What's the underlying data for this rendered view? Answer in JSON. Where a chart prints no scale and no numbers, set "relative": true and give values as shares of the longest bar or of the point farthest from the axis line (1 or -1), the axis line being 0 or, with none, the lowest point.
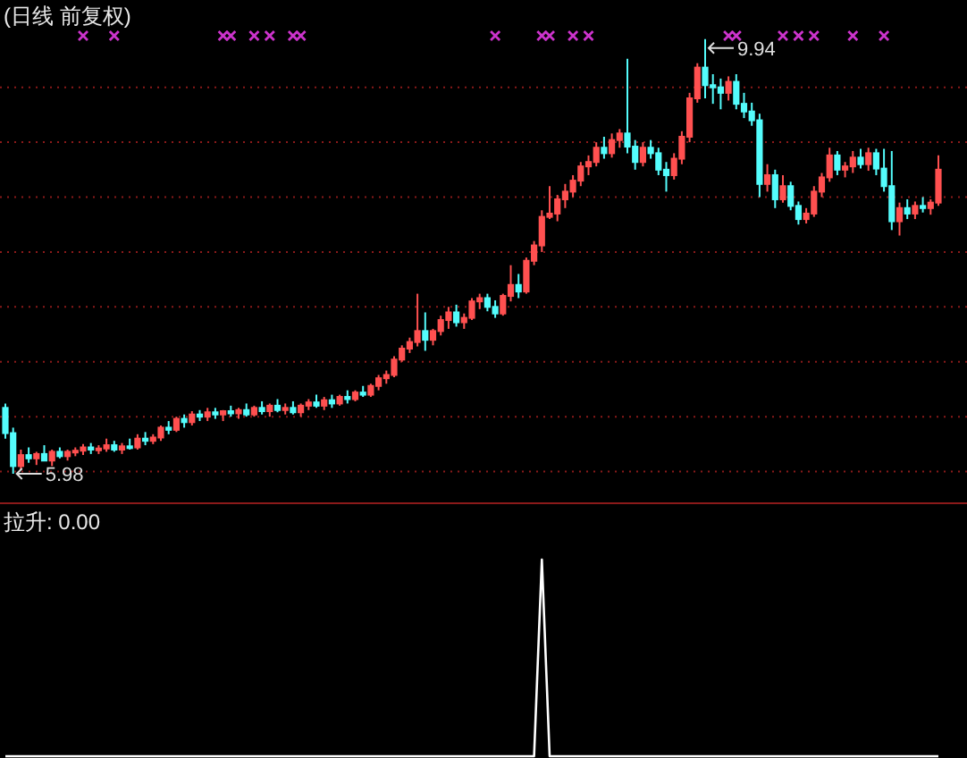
{
  "chart_data": [
    {
      "type": "candlestick",
      "title": "(日线 前复权)",
      "categories": [
        null,
        null,
        null,
        null,
        null,
        null,
        null,
        null,
        null,
        null,
        null,
        null,
        null,
        null,
        null,
        null,
        null,
        null,
        null,
        null,
        null,
        null,
        null,
        null,
        null,
        null,
        null,
        null,
        null,
        null,
        null,
        null,
        null,
        null,
        null,
        null,
        null,
        null,
        null,
        null,
        null,
        null,
        null,
        null,
        null,
        null,
        null,
        null,
        null,
        null,
        null,
        null,
        null,
        null,
        null,
        null,
        null,
        null,
        null,
        null,
        null,
        null,
        null,
        null,
        null,
        null,
        null,
        null,
        null,
        null,
        null,
        null,
        null,
        null,
        null,
        null,
        null,
        null,
        null,
        null,
        null,
        null,
        null,
        null,
        null,
        null,
        null,
        null,
        null,
        null,
        null,
        null,
        null,
        null,
        null,
        null,
        null,
        null,
        null,
        null,
        null,
        null,
        null,
        null,
        null,
        null,
        null,
        null,
        null,
        null,
        null,
        null,
        null,
        null,
        null,
        null,
        null,
        null,
        null,
        null,
        null
      ],
      "ohlc": [
        [
          6.58,
          6.62,
          6.3,
          6.35
        ],
        [
          6.35,
          6.4,
          5.98,
          6.05
        ],
        [
          6.05,
          6.2,
          6.02,
          6.15
        ],
        [
          6.15,
          6.22,
          6.08,
          6.12
        ],
        [
          6.12,
          6.18,
          6.06,
          6.16
        ],
        [
          6.16,
          6.24,
          6.1,
          6.1
        ],
        [
          6.1,
          6.2,
          6.05,
          6.18
        ],
        [
          6.18,
          6.22,
          6.12,
          6.14
        ],
        [
          6.14,
          6.2,
          6.1,
          6.18
        ],
        [
          6.18,
          6.22,
          6.14,
          6.19
        ],
        [
          6.19,
          6.25,
          6.15,
          6.22
        ],
        [
          6.22,
          6.26,
          6.16,
          6.2
        ],
        [
          6.2,
          6.24,
          6.16,
          6.21
        ],
        [
          6.21,
          6.3,
          6.18,
          6.24
        ],
        [
          6.24,
          6.28,
          6.18,
          6.2
        ],
        [
          6.2,
          6.26,
          6.16,
          6.23
        ],
        [
          6.23,
          6.3,
          6.2,
          6.22
        ],
        [
          6.22,
          6.34,
          6.2,
          6.3
        ],
        [
          6.3,
          6.36,
          6.24,
          6.28
        ],
        [
          6.28,
          6.34,
          6.25,
          6.31
        ],
        [
          6.31,
          6.42,
          6.28,
          6.4
        ],
        [
          6.4,
          6.46,
          6.34,
          6.38
        ],
        [
          6.38,
          6.5,
          6.36,
          6.48
        ],
        [
          6.48,
          6.52,
          6.4,
          6.45
        ],
        [
          6.45,
          6.55,
          6.42,
          6.52
        ],
        [
          6.52,
          6.56,
          6.46,
          6.5
        ],
        [
          6.5,
          6.58,
          6.46,
          6.54
        ],
        [
          6.54,
          6.58,
          6.48,
          6.52
        ],
        [
          6.52,
          6.56,
          6.46,
          6.55
        ],
        [
          6.55,
          6.6,
          6.5,
          6.53
        ],
        [
          6.53,
          6.58,
          6.48,
          6.56
        ],
        [
          6.56,
          6.62,
          6.5,
          6.52
        ],
        [
          6.52,
          6.6,
          6.5,
          6.58
        ],
        [
          6.58,
          6.64,
          6.52,
          6.55
        ],
        [
          6.55,
          6.62,
          6.5,
          6.6
        ],
        [
          6.6,
          6.66,
          6.54,
          6.56
        ],
        [
          6.56,
          6.62,
          6.52,
          6.58
        ],
        [
          6.58,
          6.64,
          6.52,
          6.54
        ],
        [
          6.54,
          6.62,
          6.5,
          6.6
        ],
        [
          6.6,
          6.66,
          6.56,
          6.63
        ],
        [
          6.63,
          6.7,
          6.58,
          6.6
        ],
        [
          6.6,
          6.68,
          6.56,
          6.65
        ],
        [
          6.65,
          6.7,
          6.58,
          6.62
        ],
        [
          6.62,
          6.7,
          6.6,
          6.68
        ],
        [
          6.68,
          6.74,
          6.62,
          6.66
        ],
        [
          6.66,
          6.74,
          6.64,
          6.72
        ],
        [
          6.72,
          6.78,
          6.68,
          6.7
        ],
        [
          6.7,
          6.8,
          6.68,
          6.78
        ],
        [
          6.78,
          6.88,
          6.74,
          6.85
        ],
        [
          6.85,
          6.92,
          6.8,
          6.88
        ],
        [
          6.88,
          7.05,
          6.86,
          7.02
        ],
        [
          7.02,
          7.15,
          7.0,
          7.12
        ],
        [
          7.12,
          7.22,
          7.08,
          7.18
        ],
        [
          7.18,
          7.62,
          7.14,
          7.28
        ],
        [
          7.28,
          7.45,
          7.1,
          7.2
        ],
        [
          7.2,
          7.3,
          7.15,
          7.28
        ],
        [
          7.28,
          7.42,
          7.24,
          7.38
        ],
        [
          7.38,
          7.5,
          7.3,
          7.45
        ],
        [
          7.45,
          7.52,
          7.32,
          7.36
        ],
        [
          7.36,
          7.44,
          7.3,
          7.4
        ],
        [
          7.4,
          7.58,
          7.38,
          7.55
        ],
        [
          7.55,
          7.62,
          7.48,
          7.58
        ],
        [
          7.58,
          7.62,
          7.46,
          7.5
        ],
        [
          7.5,
          7.56,
          7.4,
          7.44
        ],
        [
          7.44,
          7.62,
          7.42,
          7.6
        ],
        [
          7.6,
          7.88,
          7.55,
          7.7
        ],
        [
          7.7,
          7.8,
          7.58,
          7.64
        ],
        [
          7.64,
          7.95,
          7.62,
          7.92
        ],
        [
          7.92,
          8.1,
          7.88,
          8.06
        ],
        [
          8.06,
          8.38,
          8.0,
          8.32
        ],
        [
          8.32,
          8.6,
          8.3,
          8.35
        ],
        [
          8.35,
          8.52,
          8.28,
          8.48
        ],
        [
          8.48,
          8.62,
          8.4,
          8.55
        ],
        [
          8.55,
          8.7,
          8.5,
          8.65
        ],
        [
          8.65,
          8.82,
          8.6,
          8.78
        ],
        [
          8.78,
          8.88,
          8.7,
          8.82
        ],
        [
          8.82,
          9.0,
          8.78,
          8.95
        ],
        [
          8.95,
          9.05,
          8.85,
          8.9
        ],
        [
          8.9,
          9.08,
          8.86,
          9.02
        ],
        [
          9.02,
          9.12,
          8.95,
          9.08
        ],
        [
          9.08,
          9.76,
          8.9,
          8.96
        ],
        [
          8.96,
          9.02,
          8.75,
          8.82
        ],
        [
          8.82,
          9.0,
          8.78,
          8.95
        ],
        [
          8.95,
          9.02,
          8.85,
          8.9
        ],
        [
          8.9,
          8.95,
          8.7,
          8.75
        ],
        [
          8.75,
          8.82,
          8.55,
          8.7
        ],
        [
          8.7,
          8.9,
          8.66,
          8.85
        ],
        [
          8.85,
          9.1,
          8.8,
          9.05
        ],
        [
          9.05,
          9.45,
          9.0,
          9.4
        ],
        [
          9.4,
          9.72,
          9.36,
          9.68
        ],
        [
          9.68,
          9.94,
          9.4,
          9.52
        ],
        [
          9.52,
          9.62,
          9.35,
          9.5
        ],
        [
          9.5,
          9.58,
          9.3,
          9.45
        ],
        [
          9.45,
          9.6,
          9.38,
          9.55
        ],
        [
          9.55,
          9.62,
          9.3,
          9.35
        ],
        [
          9.35,
          9.45,
          9.22,
          9.28
        ],
        [
          9.28,
          9.36,
          9.15,
          9.2
        ],
        [
          9.2,
          9.26,
          8.5,
          8.62
        ],
        [
          8.62,
          8.8,
          8.55,
          8.7
        ],
        [
          8.7,
          8.75,
          8.4,
          8.48
        ],
        [
          8.48,
          8.7,
          8.45,
          8.6
        ],
        [
          8.6,
          8.64,
          8.38,
          8.42
        ],
        [
          8.42,
          8.46,
          8.25,
          8.3
        ],
        [
          8.3,
          8.4,
          8.26,
          8.35
        ],
        [
          8.35,
          8.6,
          8.32,
          8.55
        ],
        [
          8.55,
          8.72,
          8.5,
          8.68
        ],
        [
          8.68,
          8.95,
          8.64,
          8.88
        ],
        [
          8.88,
          8.92,
          8.7,
          8.75
        ],
        [
          8.75,
          8.82,
          8.68,
          8.78
        ],
        [
          8.78,
          8.92,
          8.72,
          8.86
        ],
        [
          8.86,
          8.94,
          8.76,
          8.8
        ],
        [
          8.8,
          8.95,
          8.74,
          8.9
        ],
        [
          8.9,
          8.94,
          8.7,
          8.76
        ],
        [
          8.76,
          8.94,
          8.55,
          8.6
        ],
        [
          8.6,
          8.92,
          8.2,
          8.28
        ],
        [
          8.28,
          8.45,
          8.15,
          8.4
        ],
        [
          8.4,
          8.48,
          8.3,
          8.35
        ],
        [
          8.35,
          8.46,
          8.3,
          8.42
        ],
        [
          8.42,
          8.5,
          8.36,
          8.4
        ],
        [
          8.4,
          8.48,
          8.34,
          8.45
        ],
        [
          8.45,
          8.88,
          8.42,
          8.75
        ]
      ],
      "series": [
        {
          "type": "scatter",
          "color": "#cc33cc",
          "marker": "cross",
          "values": [
            null,
            null,
            null,
            null,
            null,
            null,
            null,
            null,
            null,
            null,
            9.97,
            null,
            null,
            null,
            9.97,
            null,
            null,
            null,
            null,
            null,
            null,
            null,
            null,
            null,
            null,
            null,
            null,
            null,
            9.97,
            9.97,
            null,
            null,
            9.97,
            null,
            9.97,
            null,
            null,
            9.97,
            9.97,
            null,
            null,
            null,
            null,
            null,
            null,
            null,
            null,
            null,
            null,
            null,
            null,
            null,
            null,
            null,
            null,
            null,
            null,
            null,
            null,
            null,
            null,
            null,
            null,
            9.97,
            null,
            null,
            null,
            null,
            null,
            9.97,
            9.97,
            null,
            null,
            9.97,
            null,
            9.97,
            null,
            null,
            null,
            null,
            null,
            null,
            null,
            null,
            null,
            null,
            null,
            null,
            null,
            null,
            null,
            null,
            null,
            9.97,
            9.97,
            null,
            null,
            null,
            null,
            null,
            9.97,
            null,
            9.97,
            null,
            9.97,
            null,
            null,
            null,
            null,
            9.97,
            null,
            null,
            null,
            9.97,
            null,
            null,
            null,
            null,
            null,
            null,
            null
          ]
        }
      ],
      "yticks": [
        {
          "value": 6.0,
          "label": null
        },
        {
          "value": 6.5,
          "label": null
        },
        {
          "value": 7.0,
          "label": null
        },
        {
          "value": 7.5,
          "label": null
        },
        {
          "value": 8.0,
          "label": null
        },
        {
          "value": 8.5,
          "label": null
        },
        {
          "value": 9.0,
          "label": null
        },
        {
          "value": 9.5,
          "label": null
        }
      ],
      "grid": "y",
      "annotations": [
        "9.94",
        "5.98"
      ]
    },
    {
      "type": "line",
      "title": "拉升: 0.00",
      "relative": true,
      "categories": [
        null,
        null,
        null,
        null,
        null,
        null,
        null,
        null,
        null,
        null,
        null,
        null,
        null,
        null,
        null,
        null,
        null,
        null,
        null,
        null,
        null,
        null,
        null,
        null,
        null,
        null,
        null,
        null,
        null,
        null,
        null,
        null,
        null,
        null,
        null,
        null,
        null,
        null,
        null,
        null,
        null,
        null,
        null,
        null,
        null,
        null,
        null,
        null,
        null,
        null,
        null,
        null,
        null,
        null,
        null,
        null,
        null,
        null,
        null,
        null,
        null,
        null,
        null,
        null,
        null,
        null,
        null,
        null,
        null,
        null,
        null,
        null,
        null,
        null,
        null,
        null,
        null,
        null,
        null,
        null,
        null,
        null,
        null,
        null,
        null,
        null,
        null,
        null,
        null,
        null,
        null,
        null,
        null,
        null,
        null,
        null,
        null,
        null,
        null,
        null,
        null,
        null,
        null,
        null,
        null,
        null,
        null,
        null,
        null,
        null,
        null,
        null,
        null,
        null,
        null,
        null,
        null,
        null,
        null,
        null,
        null
      ],
      "series": [
        {
          "color": "#ffffff",
          "values": [
            0,
            0,
            0,
            0,
            0,
            0,
            0,
            0,
            0,
            0,
            0,
            0,
            0,
            0,
            0,
            0,
            0,
            0,
            0,
            0,
            0,
            0,
            0,
            0,
            0,
            0,
            0,
            0,
            0,
            0,
            0,
            0,
            0,
            0,
            0,
            0,
            0,
            0,
            0,
            0,
            0,
            0,
            0,
            0,
            0,
            0,
            0,
            0,
            0,
            0,
            0,
            0,
            0,
            0,
            0,
            0,
            0,
            0,
            0,
            0,
            0,
            0,
            0,
            0,
            0,
            0,
            0,
            0,
            0,
            1,
            0,
            0,
            0,
            0,
            0,
            0,
            0,
            0,
            0,
            0,
            0,
            0,
            0,
            0,
            0,
            0,
            0,
            0,
            0,
            0,
            0,
            0,
            0,
            0,
            0,
            0,
            0,
            0,
            0,
            0,
            0,
            0,
            0,
            0,
            0,
            0,
            0,
            0,
            0,
            0,
            0,
            0,
            0,
            0,
            0,
            0,
            0,
            0,
            0,
            0,
            0
          ]
        }
      ]
    }
  ]
}
